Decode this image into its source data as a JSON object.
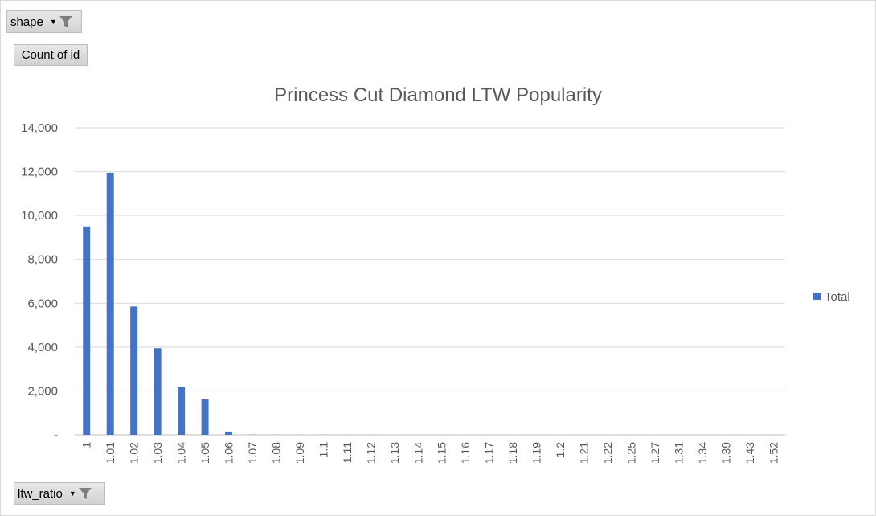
{
  "pivot": {
    "filter_field": "shape",
    "value_field": "Count of id",
    "axis_field": "ltw_ratio"
  },
  "colors": {
    "bar": "#4472c4",
    "grid": "#d9d9d9",
    "text": "#595959"
  },
  "icons": {
    "filter": "funnel-filter-icon",
    "dropdown": "dropdown-arrow-icon"
  },
  "chart_data": {
    "type": "bar",
    "title": "Princess Cut Diamond LTW Popularity",
    "xlabel": "",
    "ylabel": "",
    "categories": [
      "1",
      "1.01",
      "1.02",
      "1.03",
      "1.04",
      "1.05",
      "1.06",
      "1.07",
      "1.08",
      "1.09",
      "1.1",
      "1.11",
      "1.12",
      "1.13",
      "1.14",
      "1.15",
      "1.16",
      "1.17",
      "1.18",
      "1.19",
      "1.2",
      "1.21",
      "1.22",
      "1.25",
      "1.27",
      "1.31",
      "1.34",
      "1.39",
      "1.43",
      "1.52"
    ],
    "series": [
      {
        "name": "Total",
        "values": [
          9500,
          11950,
          5850,
          3950,
          2180,
          1620,
          150,
          10,
          5,
          3,
          3,
          2,
          2,
          1,
          1,
          1,
          1,
          1,
          1,
          1,
          1,
          1,
          1,
          1,
          1,
          1,
          1,
          1,
          1,
          1
        ]
      }
    ],
    "ylim": [
      0,
      14000
    ],
    "yticks": [
      0,
      2000,
      4000,
      6000,
      8000,
      10000,
      12000,
      14000
    ],
    "ytick_labels": [
      "-",
      "2,000",
      "4,000",
      "6,000",
      "8,000",
      "10,000",
      "12,000",
      "14,000"
    ],
    "grid": true,
    "legend": "right"
  }
}
